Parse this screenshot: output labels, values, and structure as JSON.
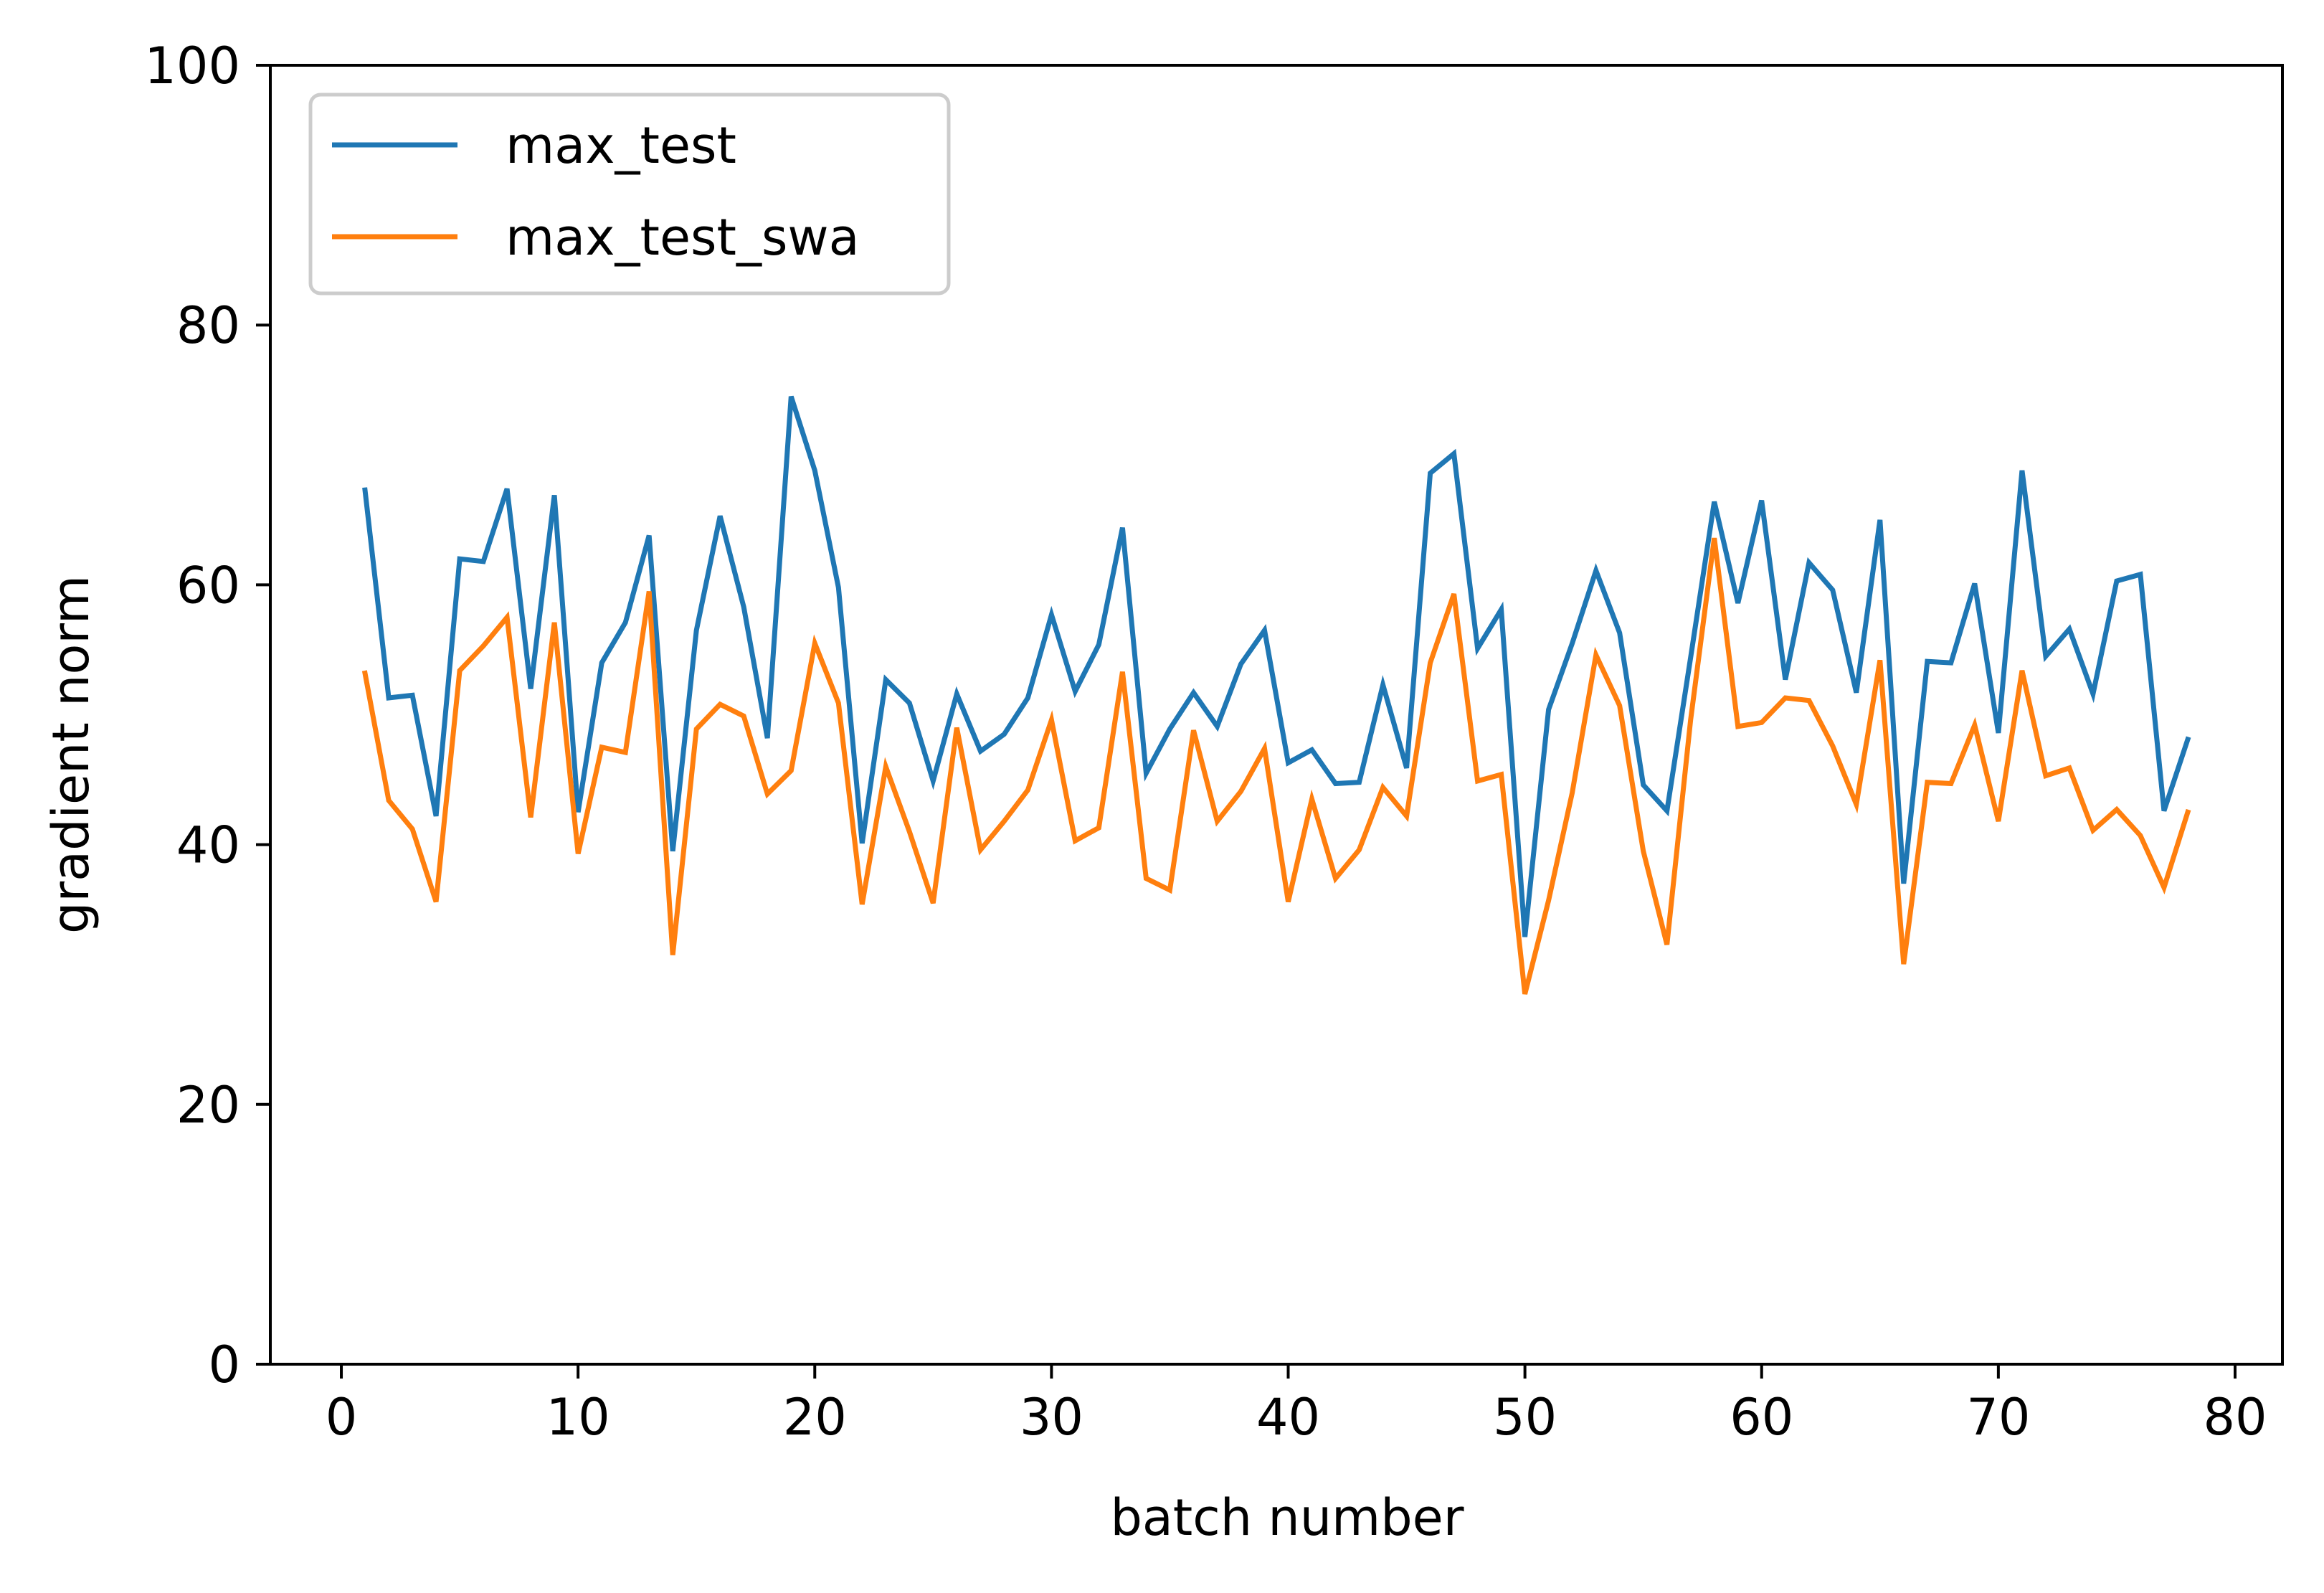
{
  "chart_data": {
    "type": "line",
    "title": "",
    "xlabel": "batch number",
    "ylabel": "gradient norm",
    "xlim": [
      -3,
      82
    ],
    "ylim": [
      0,
      100
    ],
    "xticks": [
      0,
      10,
      20,
      30,
      40,
      50,
      60,
      70,
      80
    ],
    "yticks": [
      0,
      20,
      40,
      60,
      80,
      100
    ],
    "grid": false,
    "legend_position": "upper-left",
    "x": [
      1,
      2,
      3,
      4,
      5,
      6,
      7,
      8,
      9,
      10,
      11,
      12,
      13,
      14,
      15,
      16,
      17,
      18,
      19,
      20,
      21,
      22,
      23,
      24,
      25,
      26,
      27,
      28,
      29,
      30,
      31,
      32,
      33,
      34,
      35,
      36,
      37,
      38,
      39,
      40,
      41,
      42,
      43,
      44,
      45,
      46,
      47,
      48,
      49,
      50,
      51,
      52,
      53,
      54,
      55,
      56,
      57,
      58,
      59,
      60,
      61,
      62,
      63,
      64,
      65,
      66,
      67,
      68,
      69,
      70,
      71,
      72,
      73,
      74,
      75,
      76,
      77,
      78
    ],
    "series": [
      {
        "name": "max_test",
        "color": "#1f77b4",
        "values": [
          67.3,
          51.3,
          51.5,
          42.2,
          62.0,
          61.8,
          67.4,
          52.0,
          66.9,
          42.5,
          54.0,
          57.1,
          63.8,
          39.5,
          56.5,
          65.3,
          58.3,
          48.2,
          74.5,
          68.8,
          59.8,
          40.1,
          52.7,
          50.9,
          44.9,
          51.6,
          47.2,
          48.5,
          51.3,
          57.7,
          51.8,
          55.4,
          64.4,
          45.5,
          48.9,
          51.7,
          49.1,
          53.9,
          56.5,
          46.3,
          47.3,
          44.7,
          44.8,
          52.3,
          45.9,
          68.6,
          70.1,
          55.1,
          58.1,
          32.9,
          50.4,
          55.5,
          61.1,
          56.3,
          44.6,
          42.6,
          54.4,
          66.4,
          58.6,
          66.5,
          52.7,
          61.7,
          59.6,
          51.7,
          65.0,
          37.0,
          54.1,
          54.0,
          60.1,
          48.6,
          68.8,
          54.5,
          56.6,
          51.6,
          60.3,
          60.8,
          42.6,
          48.1
        ]
      },
      {
        "name": "max_test_swa",
        "color": "#ff7f0e",
        "values": [
          53.2,
          43.4,
          41.2,
          35.6,
          53.4,
          55.3,
          57.5,
          42.1,
          57.1,
          39.3,
          47.5,
          47.1,
          59.5,
          31.5,
          48.9,
          50.8,
          49.9,
          43.9,
          45.7,
          55.5,
          50.9,
          35.4,
          46.0,
          41.0,
          35.5,
          49.0,
          39.6,
          41.8,
          44.2,
          49.6,
          40.3,
          41.3,
          53.3,
          37.4,
          36.5,
          48.8,
          41.8,
          44.1,
          47.4,
          35.6,
          43.5,
          37.4,
          39.6,
          44.4,
          42.2,
          54.0,
          59.3,
          44.9,
          45.4,
          28.5,
          35.7,
          44.0,
          54.6,
          50.7,
          39.5,
          32.3,
          49.6,
          63.6,
          49.1,
          49.4,
          51.3,
          51.1,
          47.6,
          43.1,
          54.2,
          30.8,
          44.8,
          44.7,
          49.2,
          41.8,
          53.4,
          45.3,
          45.9,
          41.1,
          42.7,
          40.7,
          36.7,
          42.5
        ]
      }
    ]
  }
}
